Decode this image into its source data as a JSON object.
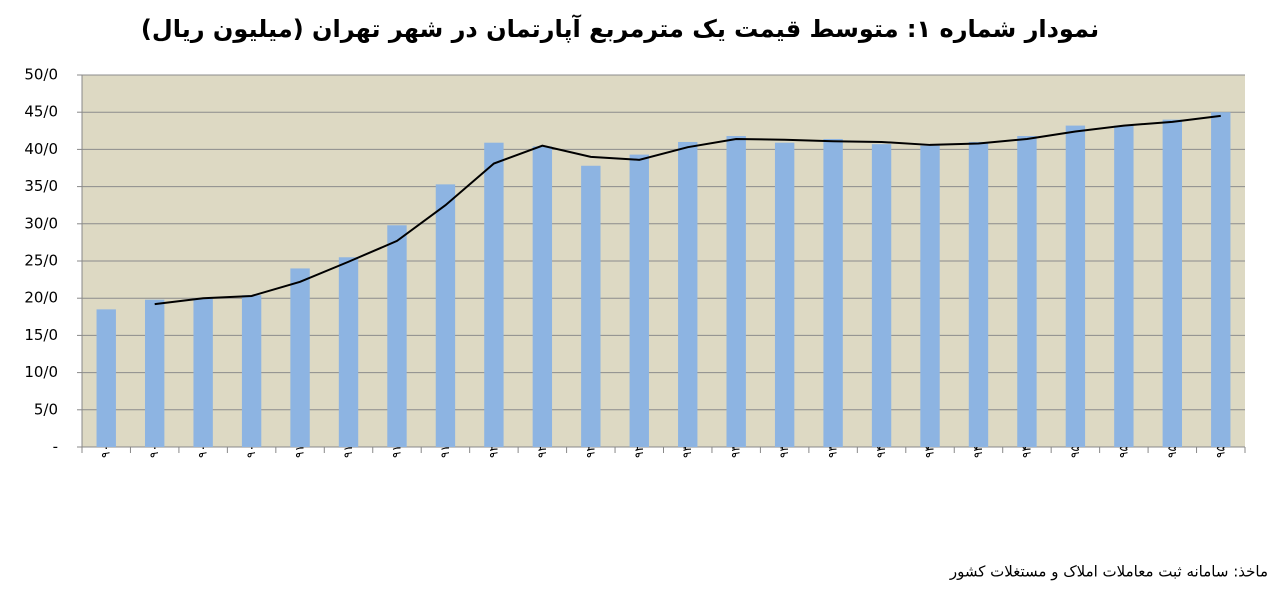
{
  "chart_data": {
    "type": "bar",
    "title": "نمودار شماره ۱: متوسط قیمت یک مترمربع آپارتمان در شهر تهران (میلیون ریال)",
    "source": "ماخذ: سامانه ثبت معاملات املاک و مستغلات کشور",
    "categories": [
      "بهار ۹۰",
      "تابستان ۹۰",
      "پاییز ۹۰",
      "زمستان ۹۰",
      "بهار ۹۱",
      "تابستان ۹۱",
      "پاییز ۹۱",
      "زمستان ۹۱",
      "بهار ۹۲",
      "تابستان ۹۲",
      "پاییز ۹۲",
      "زمستان ۹۲",
      "بهار ۹۳",
      "تابستان ۹۳",
      "پاییز ۹۳",
      "زمستان ۹۳",
      "بهار ۹۴",
      "تابستان ۹۴",
      "پاییز ۹۴",
      "زمستان ۹۴",
      "بهار ۹۵",
      "تابستان ۹۵",
      "پاییز ۹۵",
      "زمستان ۹۵"
    ],
    "series": [
      {
        "type": "bar",
        "color": "#8db4e2",
        "values": [
          18.5,
          19.8,
          20.0,
          20.4,
          24.0,
          25.5,
          29.8,
          35.3,
          40.9,
          40.4,
          37.8,
          39.3,
          41.0,
          41.8,
          40.9,
          41.4,
          40.7,
          40.5,
          41.0,
          41.8,
          43.2,
          43.2,
          44.0,
          45.0
        ]
      },
      {
        "type": "line",
        "color": "#000000",
        "values": [
          null,
          19.2,
          20.0,
          20.3,
          22.2,
          24.9,
          27.7,
          32.5,
          38.1,
          40.5,
          39.0,
          38.6,
          40.3,
          41.4,
          41.3,
          41.1,
          41.0,
          40.6,
          40.8,
          41.4,
          42.4,
          43.2,
          43.7,
          44.5
        ]
      }
    ],
    "ylim": [
      0,
      50
    ],
    "yticks": [
      {
        "value": 0,
        "label": "-"
      },
      {
        "value": 5,
        "label": "5/0"
      },
      {
        "value": 10,
        "label": "10/0"
      },
      {
        "value": 15,
        "label": "15/0"
      },
      {
        "value": 20,
        "label": "20/0"
      },
      {
        "value": 25,
        "label": "25/0"
      },
      {
        "value": 30,
        "label": "30/0"
      },
      {
        "value": 35,
        "label": "35/0"
      },
      {
        "value": 40,
        "label": "40/0"
      },
      {
        "value": 45,
        "label": "45/0"
      },
      {
        "value": 50,
        "label": "50/0"
      }
    ],
    "grid": true,
    "plot_background": "#ddd9c3"
  }
}
